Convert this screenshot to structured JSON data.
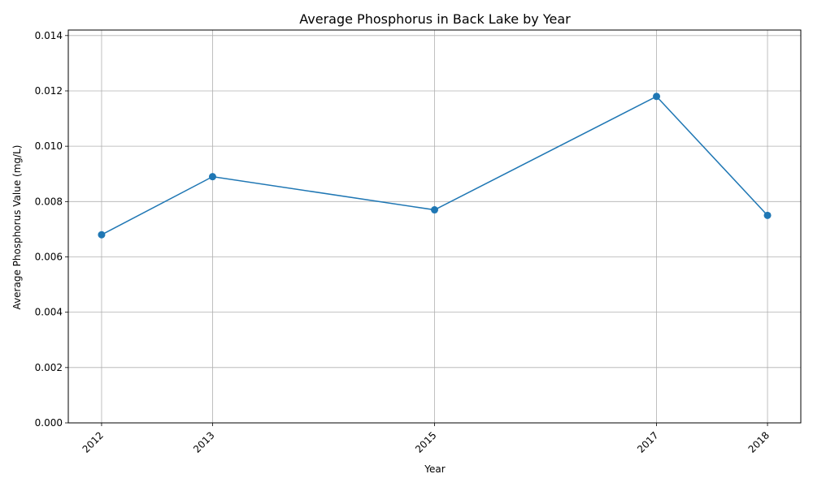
{
  "chart_data": {
    "type": "line",
    "title": "Average Phosphorus in Back Lake by Year",
    "xlabel": "Year",
    "ylabel": "Average Phosphorus Value (mg/L)",
    "x": [
      2012,
      2013,
      2015,
      2017,
      2018
    ],
    "x_tick_labels": [
      "2012",
      "2013",
      "2015",
      "2017",
      "2018"
    ],
    "y_ticks": [
      0.0,
      0.002,
      0.004,
      0.006,
      0.008,
      0.01,
      0.012,
      0.014
    ],
    "y_tick_labels": [
      "0.000",
      "0.002",
      "0.004",
      "0.006",
      "0.008",
      "0.010",
      "0.012",
      "0.014"
    ],
    "xlim": [
      2011.7,
      2018.3
    ],
    "ylim": [
      0.0,
      0.0142
    ],
    "grid": true,
    "series": [
      {
        "values": [
          0.0068,
          0.0089,
          0.0077,
          0.0118,
          0.0075
        ],
        "color": "#1f77b4",
        "marker": "circle"
      }
    ]
  }
}
